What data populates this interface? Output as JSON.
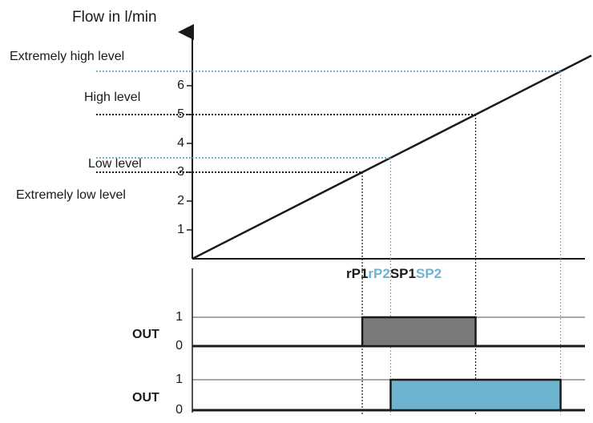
{
  "y_axis_label": "Flow in l/min",
  "yticks": [
    1,
    2,
    3,
    4,
    5,
    6
  ],
  "level_labels": [
    "Extremely high level",
    "High level",
    "Low level",
    "Extremely low level"
  ],
  "switch_points": [
    {
      "label": "rP1",
      "value": 3,
      "color": "#1a1a1a"
    },
    {
      "label": "rP2",
      "value": 3.5,
      "color": "#6cb4cf"
    },
    {
      "label": "SP1",
      "value": 5,
      "color": "#1a1a1a"
    },
    {
      "label": "SP2",
      "value": 6.5,
      "color": "#6cb4cf"
    }
  ],
  "outputs": [
    {
      "label": "OUT",
      "ticks": [
        1,
        0
      ],
      "color": "#7a7a7a"
    },
    {
      "label": "OUT",
      "ticks": [
        1,
        0
      ],
      "color": "#6cb4cf"
    }
  ]
}
